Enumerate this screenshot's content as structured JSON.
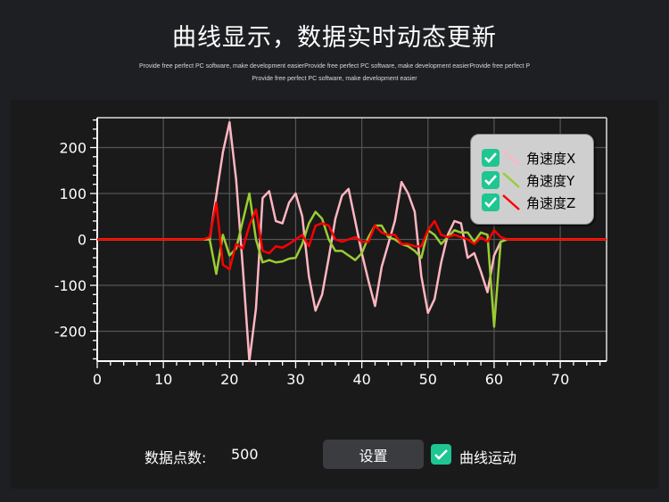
{
  "title": "曲线显示，数据实时动态更新",
  "subtitle_line1": "Provide free perfect PC software, make development easierProvide free perfect PC software, make development easierProvide free perfect P",
  "subtitle_line2": "Provide free perfect PC software, make development easier",
  "legend": {
    "items": [
      {
        "label": "角速度X",
        "checked": true,
        "color": "#ffb6c1"
      },
      {
        "label": "角速度Y",
        "checked": true,
        "color": "#9acd32"
      },
      {
        "label": "角速度Z",
        "checked": true,
        "color": "#ff0000"
      }
    ]
  },
  "controls": {
    "count_label": "数据点数:",
    "count_value": "500",
    "settings_button": "设置",
    "motion_checkbox_label": "曲线运动",
    "motion_checked": true
  },
  "chart_data": {
    "type": "line",
    "xlim": [
      0,
      77
    ],
    "ylim": [
      -265,
      265
    ],
    "xticks": [
      0,
      10,
      20,
      30,
      40,
      50,
      60,
      70
    ],
    "yticks": [
      200,
      100,
      0,
      -100,
      -200
    ],
    "grid": true,
    "legend_position": "top-right",
    "series": [
      {
        "name": "角速度X",
        "color": "#ffb6c1",
        "x": [
          0,
          16,
          17,
          18,
          19,
          20,
          21,
          22,
          23,
          24,
          25,
          26,
          27,
          28,
          29,
          30,
          31,
          32,
          33,
          34,
          35,
          36,
          37,
          38,
          39,
          40,
          41,
          42,
          43,
          44,
          45,
          46,
          47,
          48,
          49,
          50,
          51,
          52,
          53,
          54,
          55,
          56,
          57,
          58,
          59,
          60,
          61,
          62,
          77
        ],
        "y": [
          0,
          0,
          0,
          95,
          190,
          255,
          130,
          -60,
          -265,
          -150,
          90,
          105,
          40,
          35,
          80,
          100,
          50,
          -80,
          -155,
          -120,
          -40,
          45,
          95,
          110,
          40,
          -30,
          -90,
          -145,
          -60,
          -10,
          40,
          125,
          100,
          60,
          -80,
          -160,
          -130,
          -50,
          10,
          40,
          35,
          -40,
          -30,
          -70,
          -115,
          -35,
          -5,
          0,
          0
        ]
      },
      {
        "name": "角速度Y",
        "color": "#9acd32",
        "x": [
          0,
          16,
          17,
          18,
          19,
          20,
          21,
          22,
          23,
          24,
          25,
          26,
          27,
          28,
          29,
          30,
          31,
          32,
          33,
          34,
          35,
          36,
          37,
          38,
          39,
          40,
          41,
          42,
          43,
          44,
          45,
          46,
          47,
          48,
          49,
          50,
          51,
          52,
          53,
          54,
          55,
          56,
          57,
          58,
          59,
          60,
          61,
          62,
          77
        ],
        "y": [
          0,
          0,
          0,
          -75,
          10,
          -35,
          -20,
          40,
          100,
          0,
          -50,
          -45,
          -50,
          -48,
          -42,
          -40,
          -10,
          35,
          60,
          45,
          0,
          -25,
          -25,
          -35,
          -45,
          -30,
          5,
          30,
          30,
          5,
          0,
          -10,
          -15,
          -25,
          -40,
          20,
          10,
          -10,
          5,
          20,
          15,
          15,
          -5,
          15,
          10,
          -190,
          -5,
          0,
          0
        ]
      },
      {
        "name": "角速度Z",
        "color": "#ff0000",
        "x": [
          0,
          16,
          17,
          18,
          19,
          20,
          21,
          22,
          23,
          24,
          25,
          26,
          27,
          28,
          29,
          30,
          31,
          32,
          33,
          34,
          35,
          36,
          37,
          38,
          39,
          40,
          41,
          42,
          43,
          44,
          45,
          46,
          47,
          48,
          49,
          50,
          51,
          52,
          53,
          54,
          55,
          56,
          57,
          58,
          59,
          60,
          61,
          62,
          77
        ],
        "y": [
          0,
          0,
          5,
          80,
          -55,
          -65,
          -10,
          -20,
          30,
          65,
          -25,
          -30,
          -15,
          -18,
          -10,
          0,
          10,
          -15,
          30,
          35,
          30,
          0,
          -5,
          0,
          5,
          -5,
          -5,
          30,
          15,
          10,
          10,
          -10,
          -10,
          -15,
          -15,
          20,
          40,
          10,
          5,
          10,
          5,
          0,
          -10,
          5,
          -5,
          20,
          5,
          0,
          0
        ]
      }
    ]
  }
}
